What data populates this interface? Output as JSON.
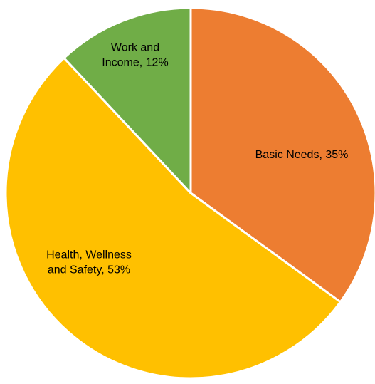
{
  "chart_data": {
    "type": "pie",
    "title": "",
    "slices": [
      {
        "label": "Basic Needs",
        "value": 35,
        "color": "#ED7D31",
        "label_lines": [
          "Basic Needs, 35%"
        ]
      },
      {
        "label": "Health, Wellness and Safety",
        "value": 53,
        "color": "#FFC000",
        "label_lines": [
          "Health, Wellness",
          "and Safety, 53%"
        ]
      },
      {
        "label": "Work and Income",
        "value": 12,
        "color": "#70AD47",
        "label_lines": [
          "Work and",
          "Income, 12%"
        ]
      }
    ],
    "start_angle": "12 o'clock",
    "direction": "clockwise",
    "legend": "none",
    "data_labels": "inside"
  }
}
